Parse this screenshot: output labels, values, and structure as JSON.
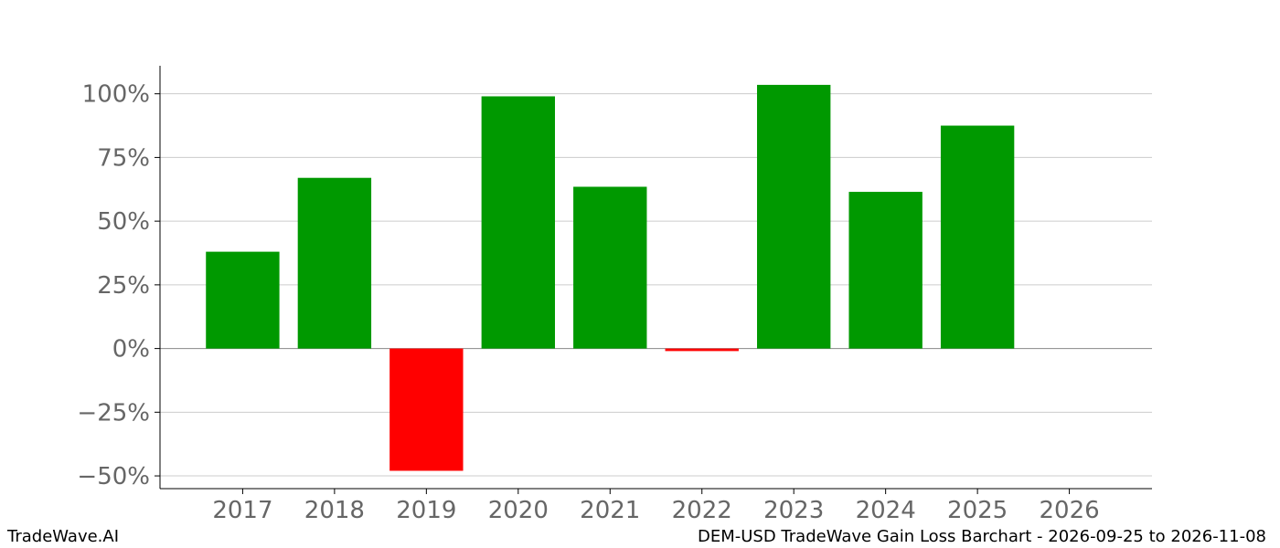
{
  "footer": {
    "brand": "TradeWave.AI",
    "caption": "DEM-USD TradeWave Gain Loss Barchart - 2026-09-25 to 2026-11-08"
  },
  "chart_data": {
    "type": "bar",
    "title": "",
    "xlabel": "",
    "ylabel": "",
    "categories": [
      "2017",
      "2018",
      "2019",
      "2020",
      "2021",
      "2022",
      "2023",
      "2024",
      "2025",
      "2026"
    ],
    "values": [
      38,
      67,
      -48,
      99,
      63.5,
      -1,
      103.5,
      61.5,
      87.5,
      null
    ],
    "ylim": [
      -55,
      111
    ],
    "yticks": [
      -50,
      -25,
      0,
      25,
      50,
      75,
      100
    ],
    "ytick_labels": [
      "−50%",
      "−25%",
      "0%",
      "25%",
      "50%",
      "75%",
      "100%"
    ],
    "grid": "y",
    "colors": {
      "positive": "#009900",
      "negative": "#ff0000",
      "grid": "#cccccc",
      "zero_line": "#888888",
      "tick_text": "#666666"
    }
  }
}
